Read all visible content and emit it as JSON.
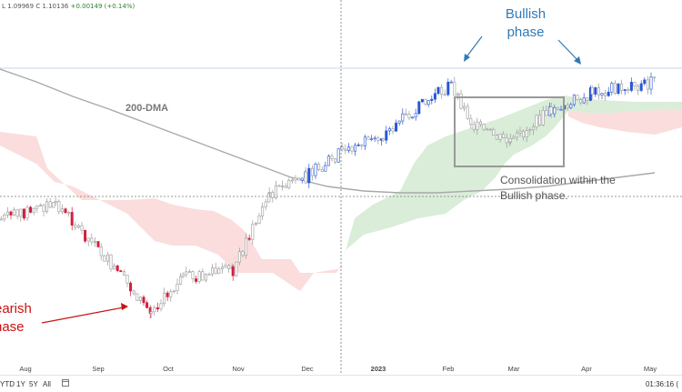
{
  "ohlc": {
    "l": "L 1.09969",
    "c": "C 1.10136",
    "chg": "+0.00149 (+0.14%)"
  },
  "annotations": {
    "dma": "200-DMA",
    "bullish_line1": "Bullish",
    "bullish_line2": "phase",
    "bearish_line1": "earish",
    "bearish_line2": "hase",
    "consolidation_line1": "Consolidation within the",
    "consolidation_line2": "Bullish phase."
  },
  "bottom_bar": {
    "ranges": [
      "YTD",
      "1Y",
      "5Y",
      "All"
    ],
    "clock": "01:36:16 ("
  },
  "colors": {
    "bull_candle": "#2855d8",
    "bear_candle": "#d21f3c",
    "neutral_candle": "#9a9a9a",
    "cloud_green": "#cfe8cf",
    "cloud_red": "#f8d2d0",
    "dma_line": "#a9a9a9",
    "bullish_text": "#2f7ab8",
    "bearish_text": "#cc1111"
  },
  "chart_data": {
    "type": "candlestick",
    "x_ticks": [
      "Aug",
      "Sep",
      "Oct",
      "Nov",
      "Dec",
      "2023",
      "Feb",
      "Mar",
      "Apr",
      "May"
    ],
    "price_axis_labels": "not visible",
    "price_path": [
      [
        "Jul",
        1.02
      ],
      [
        "Aug-mid",
        1.03
      ],
      [
        "Sep-mid",
        1.0
      ],
      [
        "Sep-end",
        0.965
      ],
      [
        "Oct-mid",
        0.985
      ],
      [
        "Nov-start",
        0.99
      ],
      [
        "Nov-mid",
        1.035
      ],
      [
        "Dec-start",
        1.045
      ],
      [
        "Dec-mid",
        1.06
      ],
      [
        "2023-start",
        1.07
      ],
      [
        "Jan-end",
        1.09
      ],
      [
        "Feb-start",
        1.1
      ],
      [
        "Feb-mid",
        1.075
      ],
      [
        "Mar-mid",
        1.065
      ],
      [
        "Mar-end",
        1.085
      ],
      [
        "Apr-mid",
        1.095
      ],
      [
        "May",
        1.101
      ]
    ],
    "indicators": [
      "200-DMA",
      "Ichimoku cloud"
    ],
    "annotations": [
      "Bullish phase",
      "Bearish phase",
      "Consolidation within the Bullish phase."
    ]
  }
}
